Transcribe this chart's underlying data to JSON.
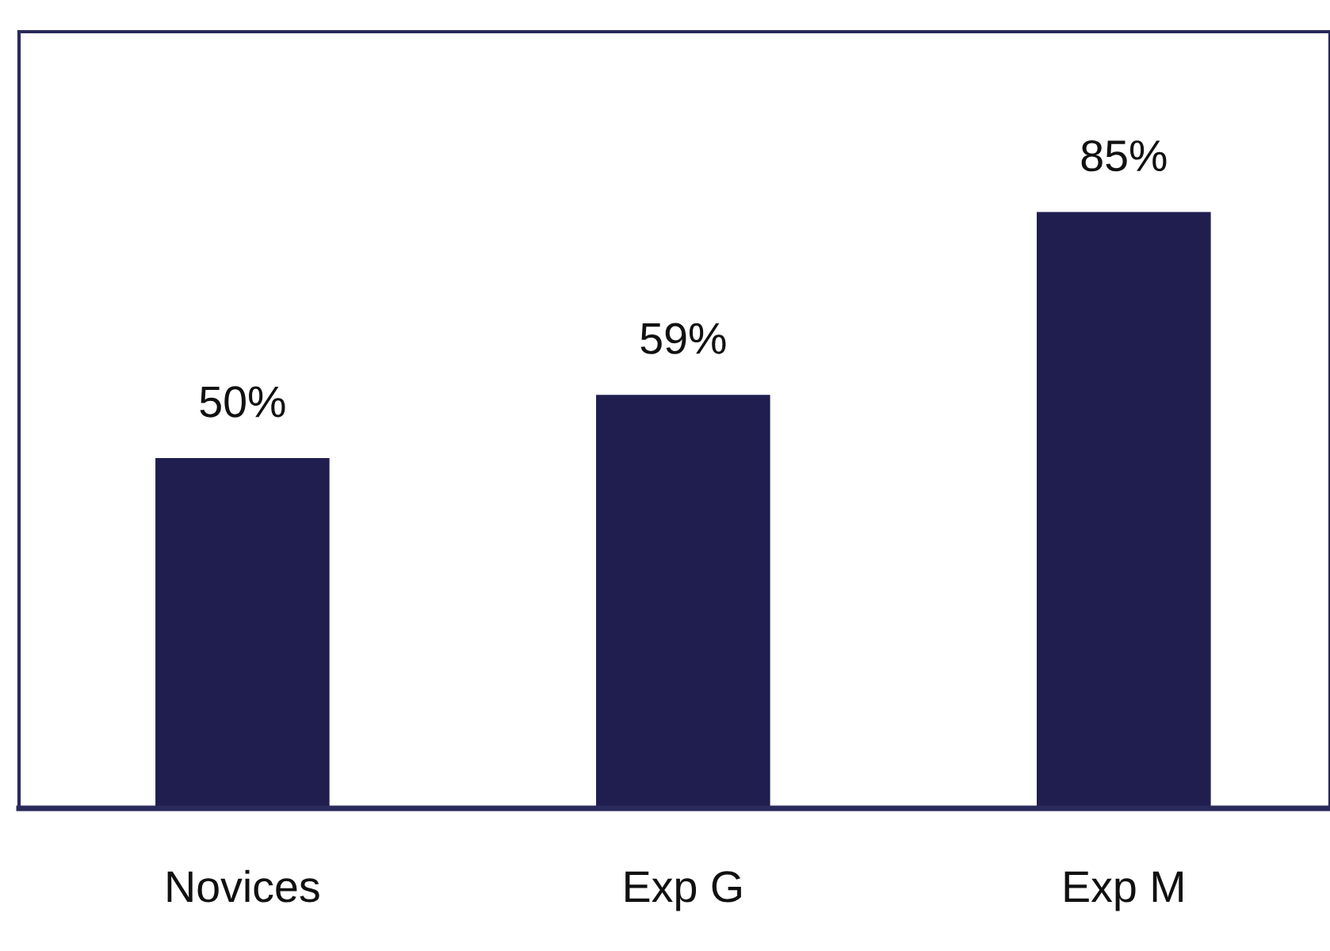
{
  "chart_data": {
    "type": "bar",
    "categories": [
      "Novices",
      "Exp G",
      "Exp M"
    ],
    "values": [
      50,
      59,
      85
    ],
    "value_labels": [
      "50%",
      "59%",
      "85%"
    ],
    "color": "#201e4f",
    "tick_labels": "x",
    "grid": false,
    "legend": false
  }
}
